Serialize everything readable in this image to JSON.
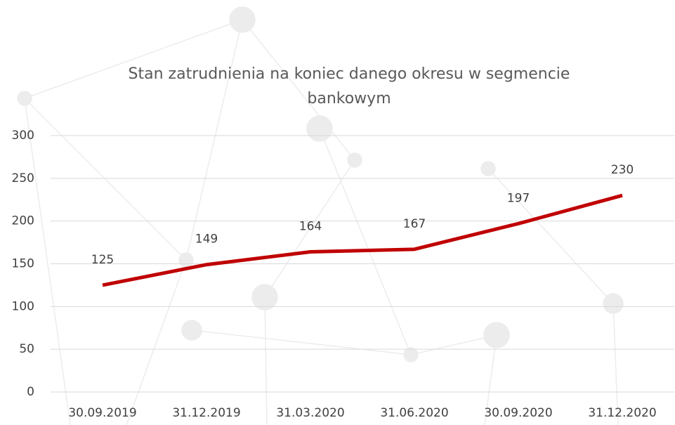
{
  "chart_data": {
    "type": "line",
    "title": "Stan zatrudnienia na koniec danego okresu w segmencie bankowym",
    "categories": [
      "30.09.2019",
      "31.12.2019",
      "31.03.2020",
      "31.06.2020",
      "30.09.2020",
      "31.12.2020"
    ],
    "values": [
      125,
      149,
      164,
      167,
      197,
      230
    ],
    "color": "#c00000",
    "ylim": [
      0,
      300
    ],
    "yticks": [
      0,
      50,
      100,
      150,
      200,
      250,
      300
    ],
    "grid": true
  }
}
